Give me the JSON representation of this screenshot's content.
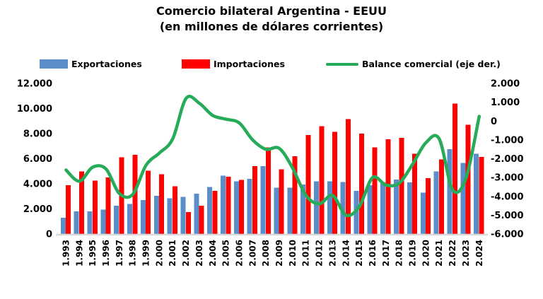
{
  "chart_data": {
    "type": "combo-bar-line",
    "title": "Comercio bilateral Argentina - EEUU",
    "subtitle": "(en millones de dólares corrientes)",
    "x_axis": {
      "categories": [
        1993,
        1994,
        1995,
        1996,
        1997,
        1998,
        1999,
        2000,
        2001,
        2002,
        2003,
        2004,
        2005,
        2006,
        2007,
        2008,
        2009,
        2010,
        2011,
        2012,
        2013,
        2014,
        2015,
        2016,
        2017,
        2018,
        2019,
        2020,
        2021,
        2022,
        2023,
        2024
      ],
      "tick_labels": [
        "1.993",
        "1.994",
        "1.995",
        "1.996",
        "1.997",
        "1.998",
        "1.999",
        "2.000",
        "2.001",
        "2.002",
        "2.003",
        "2.004",
        "2.005",
        "2.006",
        "2.007",
        "2.008",
        "2.009",
        "2.010",
        "2.011",
        "2.012",
        "2.013",
        "2.014",
        "2.015",
        "2.016",
        "2.017",
        "2.018",
        "2.019",
        "2.020",
        "2.021",
        "2.022",
        "2.023",
        "2.024"
      ]
    },
    "left_axis": {
      "min": 0,
      "max": 12000,
      "step": 2000,
      "tick_labels": [
        "0",
        "2.000",
        "4.000",
        "6.000",
        "8.000",
        "10.000",
        "12.000"
      ]
    },
    "right_axis": {
      "min": -6000,
      "max": 2000,
      "step": 1000,
      "tick_labels": [
        "-6.000",
        "-5.000",
        "-4.000",
        "-3.000",
        "-2.000",
        "-1.000",
        "0",
        "1.000",
        "2.000"
      ]
    },
    "series": [
      {
        "name": "Exportaciones",
        "type": "bar",
        "axis": "left",
        "color": "#5B8DC8",
        "values": [
          1300,
          1800,
          1800,
          1950,
          2250,
          2400,
          2700,
          3050,
          2850,
          2950,
          3200,
          3750,
          4650,
          4200,
          4400,
          5400,
          3700,
          3700,
          3950,
          4200,
          4200,
          4150,
          3450,
          3900,
          4150,
          4350,
          4100,
          3300,
          5000,
          6750,
          5650,
          6400
        ]
      },
      {
        "name": "Importaciones",
        "type": "bar",
        "axis": "left",
        "color": "#FF0000",
        "values": [
          3900,
          5000,
          4250,
          4500,
          6100,
          6300,
          5050,
          4750,
          3800,
          1750,
          2250,
          3450,
          4550,
          4300,
          5400,
          6900,
          5150,
          6200,
          7900,
          8600,
          8150,
          9150,
          8000,
          6900,
          7550,
          7650,
          6400,
          4450,
          5950,
          10400,
          8700,
          6150
        ]
      },
      {
        "name": "Balance comercial (eje der.)",
        "type": "line",
        "axis": "right",
        "smooth": true,
        "color": "#26AB59",
        "values": [
          -2600,
          -3200,
          -2450,
          -2550,
          -3850,
          -3900,
          -2350,
          -1700,
          -950,
          1200,
          950,
          300,
          100,
          -100,
          -1000,
          -1500,
          -1450,
          -2500,
          -3950,
          -4400,
          -3950,
          -5000,
          -4550,
          -3000,
          -3400,
          -3300,
          -2300,
          -1150,
          -950,
          -3650,
          -3050,
          250
        ]
      }
    ],
    "grid": false,
    "legend_position": "top",
    "background": "#FFFFFF",
    "axis_line_color": "#D9D9D9",
    "text_color": "#000000"
  }
}
